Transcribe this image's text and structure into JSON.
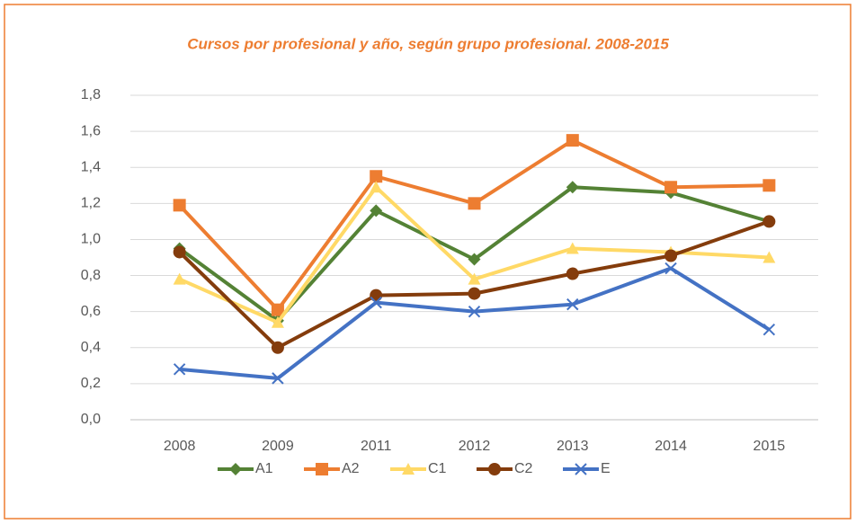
{
  "chart_data": {
    "type": "line",
    "title": "Cursos por profesional y año, según grupo profesional. 2008-2015",
    "categories": [
      "2008",
      "2009",
      "2011",
      "2012",
      "2013",
      "2014",
      "2015"
    ],
    "series": [
      {
        "name": "A1",
        "color": "#548235",
        "marker": "diamond",
        "values": [
          0.95,
          0.55,
          1.16,
          0.89,
          1.29,
          1.26,
          1.1
        ]
      },
      {
        "name": "A2",
        "color": "#ed7d31",
        "marker": "square",
        "values": [
          1.19,
          0.61,
          1.35,
          1.2,
          1.55,
          1.29,
          1.3
        ]
      },
      {
        "name": "C1",
        "color": "#ffd966",
        "marker": "triangle",
        "values": [
          0.78,
          0.54,
          1.29,
          0.78,
          0.95,
          0.93,
          0.9
        ]
      },
      {
        "name": "C2",
        "color": "#843c0c",
        "marker": "circle",
        "values": [
          0.93,
          0.4,
          0.69,
          0.7,
          0.81,
          0.91,
          1.1
        ]
      },
      {
        "name": "E",
        "color": "#4472c4",
        "marker": "x",
        "values": [
          0.28,
          0.23,
          0.65,
          0.6,
          0.64,
          0.84,
          0.5
        ]
      }
    ],
    "ylim": [
      0,
      1.8
    ],
    "yticks": [
      {
        "value": 0,
        "label": "0,0"
      },
      {
        "value": 0.2,
        "label": "0,2"
      },
      {
        "value": 0.4,
        "label": "0,4"
      },
      {
        "value": 0.6,
        "label": "0,6"
      },
      {
        "value": 0.8,
        "label": "0,8"
      },
      {
        "value": 1.0,
        "label": "1,0"
      },
      {
        "value": 1.2,
        "label": "1,2"
      },
      {
        "value": 1.4,
        "label": "1,4"
      },
      {
        "value": 1.6,
        "label": "1,6"
      },
      {
        "value": 1.8,
        "label": "1,8"
      }
    ],
    "grid": true,
    "legend": "bottom"
  }
}
